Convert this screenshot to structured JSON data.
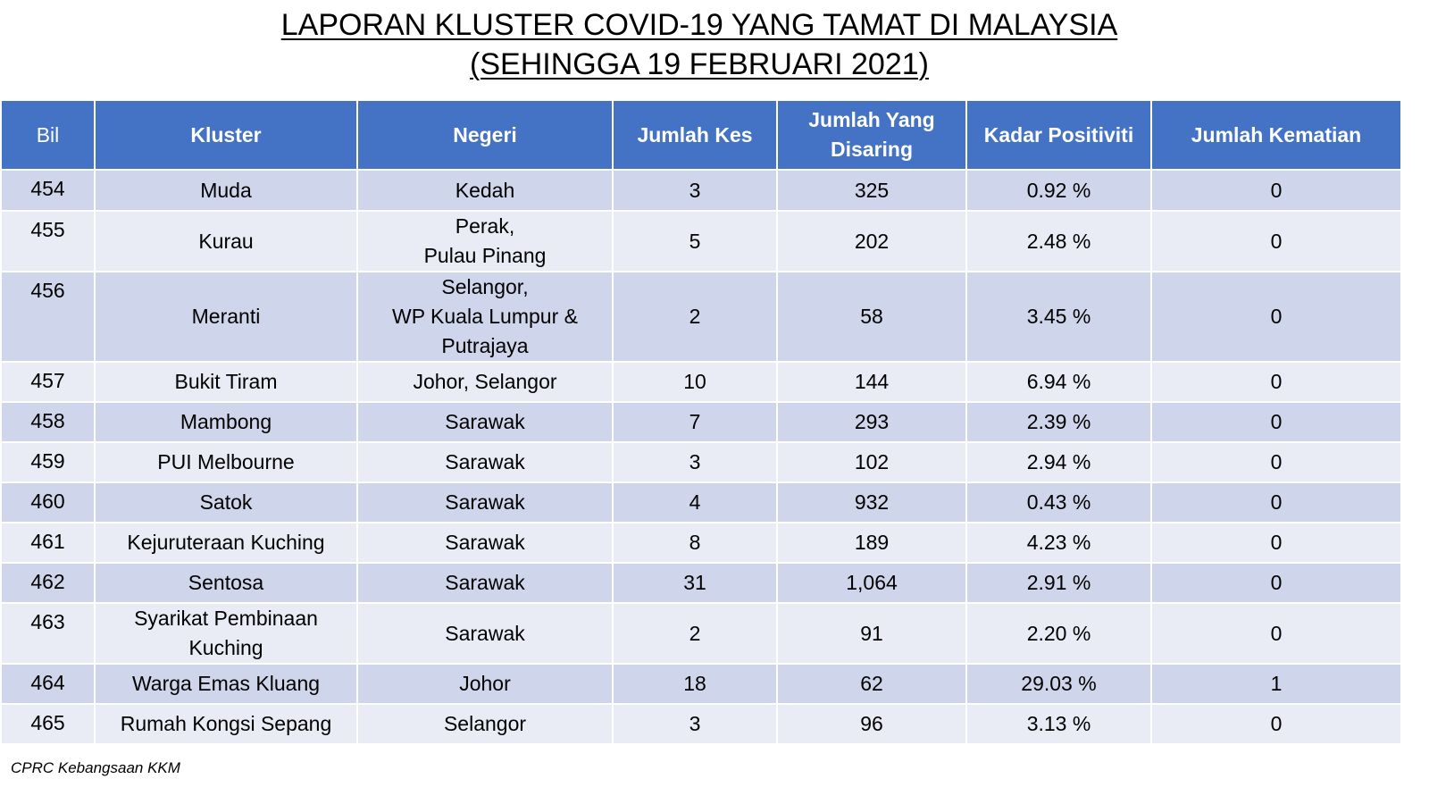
{
  "title": {
    "line1": "LAPORAN KLUSTER COVID-19 YANG TAMAT DI MALAYSIA",
    "line2": "(SEHINGGA 19 FEBRUARI 2021)"
  },
  "table": {
    "headers": {
      "bil": "Bil",
      "kluster": "Kluster",
      "negeri": "Negeri",
      "jumlah_kes": "Jumlah Kes",
      "jumlah_disaring_1": "Jumlah Yang",
      "jumlah_disaring_2": "Disaring",
      "kadar_positiviti": "Kadar Positiviti",
      "jumlah_kematian": "Jumlah Kematian"
    },
    "rows": [
      {
        "bil": "454",
        "kluster": [
          "Muda"
        ],
        "negeri": [
          "Kedah"
        ],
        "kes": "3",
        "disaring": "325",
        "positiviti": "0.92 %",
        "kematian": "0"
      },
      {
        "bil": "455",
        "kluster": [
          "Kurau"
        ],
        "negeri": [
          "Perak,",
          "Pulau Pinang"
        ],
        "kes": "5",
        "disaring": "202",
        "positiviti": "2.48 %",
        "kematian": "0"
      },
      {
        "bil": "456",
        "kluster": [
          "Meranti"
        ],
        "negeri": [
          "Selangor,",
          "WP Kuala Lumpur &",
          "Putrajaya"
        ],
        "kes": "2",
        "disaring": "58",
        "positiviti": "3.45 %",
        "kematian": "0"
      },
      {
        "bil": "457",
        "kluster": [
          "Bukit Tiram"
        ],
        "negeri": [
          "Johor, Selangor"
        ],
        "kes": "10",
        "disaring": "144",
        "positiviti": "6.94 %",
        "kematian": "0"
      },
      {
        "bil": "458",
        "kluster": [
          "Mambong"
        ],
        "negeri": [
          "Sarawak"
        ],
        "kes": "7",
        "disaring": "293",
        "positiviti": "2.39 %",
        "kematian": "0"
      },
      {
        "bil": "459",
        "kluster": [
          "PUI Melbourne"
        ],
        "negeri": [
          "Sarawak"
        ],
        "kes": "3",
        "disaring": "102",
        "positiviti": "2.94 %",
        "kematian": "0"
      },
      {
        "bil": "460",
        "kluster": [
          "Satok"
        ],
        "negeri": [
          "Sarawak"
        ],
        "kes": "4",
        "disaring": "932",
        "positiviti": "0.43 %",
        "kematian": "0"
      },
      {
        "bil": "461",
        "kluster": [
          "Kejuruteraan Kuching"
        ],
        "negeri": [
          "Sarawak"
        ],
        "kes": "8",
        "disaring": "189",
        "positiviti": "4.23 %",
        "kematian": "0"
      },
      {
        "bil": "462",
        "kluster": [
          "Sentosa"
        ],
        "negeri": [
          "Sarawak"
        ],
        "kes": "31",
        "disaring": "1,064",
        "positiviti": "2.91 %",
        "kematian": "0"
      },
      {
        "bil": "463",
        "kluster": [
          "Syarikat Pembinaan",
          "Kuching"
        ],
        "negeri": [
          "Sarawak"
        ],
        "kes": "2",
        "disaring": "91",
        "positiviti": "2.20 %",
        "kematian": "0"
      },
      {
        "bil": "464",
        "kluster": [
          "Warga Emas Kluang"
        ],
        "negeri": [
          "Johor"
        ],
        "kes": "18",
        "disaring": "62",
        "positiviti": "29.03 %",
        "kematian": "1"
      },
      {
        "bil": "465",
        "kluster": [
          "Rumah Kongsi Sepang"
        ],
        "negeri": [
          "Selangor"
        ],
        "kes": "3",
        "disaring": "96",
        "positiviti": "3.13 %",
        "kematian": "0"
      }
    ]
  },
  "footer": {
    "source": "CPRC Kebangsaan KKM"
  },
  "colors": {
    "header_bg": "#4472c4",
    "row_dark": "#cfd5ea",
    "row_light": "#e9ebf5"
  }
}
